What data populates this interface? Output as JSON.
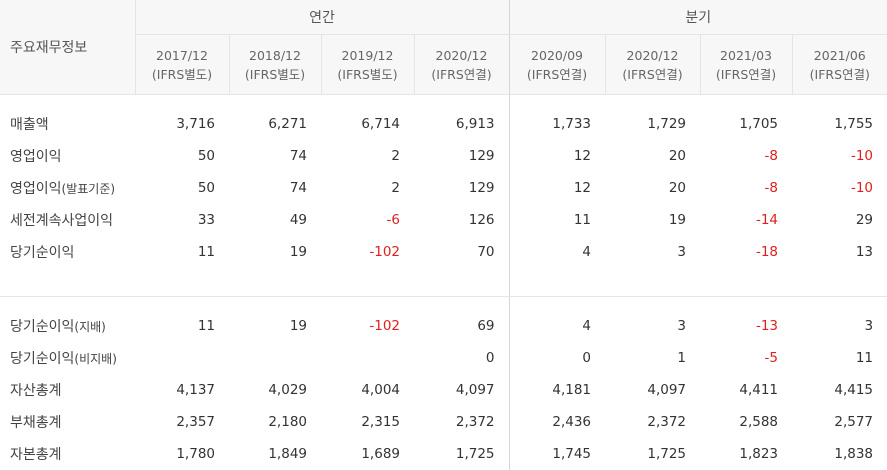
{
  "header": {
    "corner_label": "주요재무정보",
    "group_annual": "연간",
    "group_quarterly": "분기",
    "periods": [
      {
        "date": "2017/12",
        "basis": "(IFRS별도)"
      },
      {
        "date": "2018/12",
        "basis": "(IFRS별도)"
      },
      {
        "date": "2019/12",
        "basis": "(IFRS별도)"
      },
      {
        "date": "2020/12",
        "basis": "(IFRS연결)"
      },
      {
        "date": "2020/09",
        "basis": "(IFRS연결)"
      },
      {
        "date": "2020/12",
        "basis": "(IFRS연결)"
      },
      {
        "date": "2021/03",
        "basis": "(IFRS연결)"
      },
      {
        "date": "2021/06",
        "basis": "(IFRS연결)"
      }
    ]
  },
  "rows": [
    {
      "label": "매출액",
      "sub": "",
      "values": [
        "3,716",
        "6,271",
        "6,714",
        "6,913",
        "1,733",
        "1,729",
        "1,705",
        "1,755"
      ]
    },
    {
      "label": "영업이익",
      "sub": "",
      "values": [
        "50",
        "74",
        "2",
        "129",
        "12",
        "20",
        "-8",
        "-10"
      ]
    },
    {
      "label": "영업이익",
      "sub": "(발표기준)",
      "values": [
        "50",
        "74",
        "2",
        "129",
        "12",
        "20",
        "-8",
        "-10"
      ]
    },
    {
      "label": "세전계속사업이익",
      "sub": "",
      "values": [
        "33",
        "49",
        "-6",
        "126",
        "11",
        "19",
        "-14",
        "29"
      ]
    },
    {
      "label": "당기순이익",
      "sub": "",
      "values": [
        "11",
        "19",
        "-102",
        "70",
        "4",
        "3",
        "-18",
        "13"
      ]
    },
    {
      "label": "당기순이익",
      "sub": "(지배)",
      "values": [
        "11",
        "19",
        "-102",
        "69",
        "4",
        "3",
        "-13",
        "3"
      ]
    },
    {
      "label": "당기순이익",
      "sub": "(비지배)",
      "values": [
        "",
        "",
        "",
        "0",
        "0",
        "1",
        "-5",
        "11"
      ]
    },
    {
      "label": "자산총계",
      "sub": "",
      "values": [
        "4,137",
        "4,029",
        "4,004",
        "4,097",
        "4,181",
        "4,097",
        "4,411",
        "4,415"
      ]
    },
    {
      "label": "부채총계",
      "sub": "",
      "values": [
        "2,357",
        "2,180",
        "2,315",
        "2,372",
        "2,436",
        "2,372",
        "2,588",
        "2,577"
      ]
    },
    {
      "label": "자본총계",
      "sub": "",
      "values": [
        "1,780",
        "1,849",
        "1,689",
        "1,725",
        "1,745",
        "1,725",
        "1,823",
        "1,838"
      ]
    }
  ],
  "colors": {
    "negative": "#e02020",
    "header_bg": "#f7f7f7",
    "border": "#e5e5e5"
  }
}
